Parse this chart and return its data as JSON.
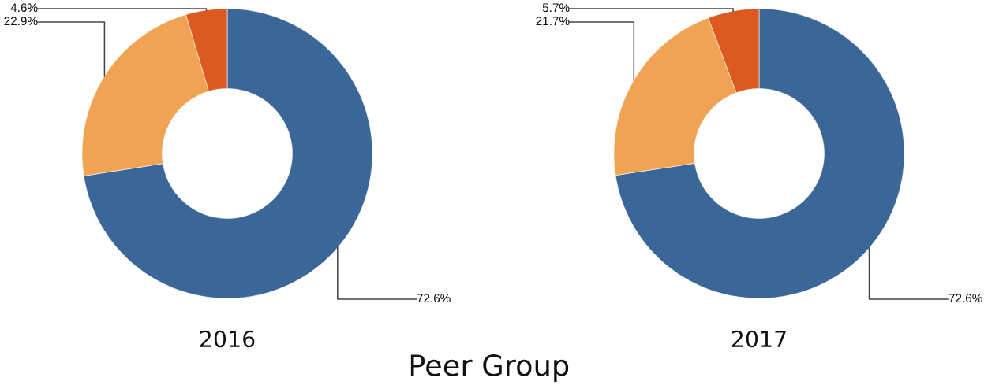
{
  "chart_data": [
    {
      "type": "donut",
      "title": "2016",
      "categories": [
        null,
        null,
        null
      ],
      "values": [
        72.6,
        22.9,
        4.6
      ],
      "colors": [
        "#3a6797",
        "#f0a352",
        "#dc5a1f"
      ],
      "value_labels": [
        "72.6%",
        "22.9%",
        "4.6%"
      ],
      "annotations": [
        "Peer Group"
      ]
    },
    {
      "type": "donut",
      "title": "2017",
      "categories": [
        null,
        null,
        null
      ],
      "values": [
        72.6,
        21.7,
        5.7
      ],
      "colors": [
        "#3a6797",
        "#f0a352",
        "#dc5a1f"
      ],
      "value_labels": [
        "72.6%",
        "21.7%",
        "5.7%"
      ]
    }
  ]
}
